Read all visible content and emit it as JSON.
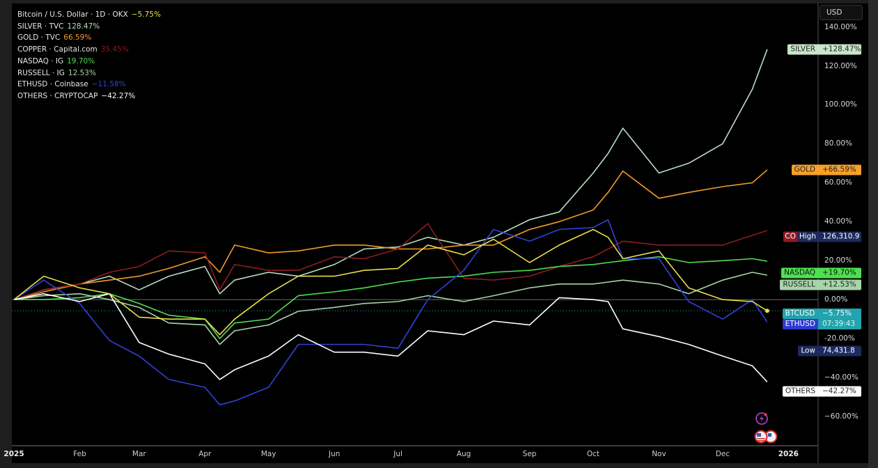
{
  "legend": [
    {
      "label": "Bitcoin / U.S. Dollar · 1D · OKX",
      "value": "−5.75%",
      "color": "#e8e04a"
    },
    {
      "label": "SILVER · TVC",
      "value": "128.47%",
      "color": "#b9dfc0"
    },
    {
      "label": "GOLD · TVC",
      "value": "66.59%",
      "color": "#f39a2a"
    },
    {
      "label": "COPPER · Capital.com",
      "value": "35.45%",
      "color": "#8c1c22"
    },
    {
      "label": "NASDAQ · IG",
      "value": "19.70%",
      "color": "#4fe04f"
    },
    {
      "label": "RUSSELL · IG",
      "value": "12.53%",
      "color": "#a8d5a8"
    },
    {
      "label": "ETHUSD · Coinbase",
      "value": "−11.58%",
      "color": "#3340d8"
    },
    {
      "label": "OTHERS · CRYPTOCAP",
      "value": "−42.27%",
      "color": "#ffffff"
    }
  ],
  "currency_button": "USD",
  "tags": {
    "silver": {
      "name": "SILVER",
      "value": "+128.47%"
    },
    "gold": {
      "name": "GOLD",
      "value": "+66.59%"
    },
    "copper_high": {
      "name": "CO",
      "label": "High",
      "value": "126,310.9"
    },
    "nasdaq": {
      "name": "NASDAQ",
      "value": "+19.70%"
    },
    "russell": {
      "name": "RUSSELL",
      "value": "+12.53%"
    },
    "btc": {
      "name": "BTCUSD",
      "value": "−5.75%",
      "countdown": "07:39:43"
    },
    "eth": {
      "name": "ETHUSD"
    },
    "low": {
      "label": "Low",
      "value": "74,431.8"
    },
    "others": {
      "name": "OTHERS",
      "value": "−42.27%"
    }
  },
  "colors": {
    "background": "#000000",
    "btc_tag": "#22a3ad",
    "hl_tag": "#1c2a5e"
  },
  "chart_data": {
    "type": "line",
    "title": "Bitcoin / U.S. Dollar · 1D · OKX",
    "xlim": [
      "2024-12-31",
      "2026-01-15"
    ],
    "ylim": [
      -75,
      152
    ],
    "y_ticks": [
      140,
      120,
      100,
      80,
      60,
      40,
      20,
      0,
      -20,
      -40,
      -60
    ],
    "y_tick_labels": [
      "140.00%",
      "120.00%",
      "100.00%",
      "80.00%",
      "60.00%",
      "40.00%",
      "20.00%",
      "0.00%",
      "-20.00%",
      "−40.00%",
      "−60.00%"
    ],
    "x_ticks": [
      {
        "date": "2025-01-01",
        "label": "2025",
        "bold": true
      },
      {
        "date": "2025-02-01",
        "label": "Feb"
      },
      {
        "date": "2025-03-01",
        "label": "Mar"
      },
      {
        "date": "2025-04-01",
        "label": "Apr"
      },
      {
        "date": "2025-05-01",
        "label": "May"
      },
      {
        "date": "2025-06-01",
        "label": "Jun"
      },
      {
        "date": "2025-07-01",
        "label": "Jul"
      },
      {
        "date": "2025-08-01",
        "label": "Aug"
      },
      {
        "date": "2025-09-01",
        "label": "Sep"
      },
      {
        "date": "2025-10-01",
        "label": "Oct"
      },
      {
        "date": "2025-11-01",
        "label": "Nov"
      },
      {
        "date": "2025-12-01",
        "label": "Dec"
      },
      {
        "date": "2026-01-01",
        "label": "2026",
        "bold": true
      }
    ],
    "x": [
      "2025-01-01",
      "2025-01-15",
      "2025-02-01",
      "2025-02-15",
      "2025-03-01",
      "2025-03-15",
      "2025-04-01",
      "2025-04-08",
      "2025-04-15",
      "2025-05-01",
      "2025-05-15",
      "2025-06-01",
      "2025-06-15",
      "2025-07-01",
      "2025-07-15",
      "2025-08-01",
      "2025-08-15",
      "2025-09-01",
      "2025-09-15",
      "2025-10-01",
      "2025-10-08",
      "2025-10-15",
      "2025-11-01",
      "2025-11-15",
      "2025-12-01",
      "2025-12-15",
      "2025-12-22"
    ],
    "series": [
      {
        "name": "SILVER",
        "color": "#b9dfc0",
        "values": [
          0,
          5,
          8,
          12,
          5,
          12,
          17,
          3,
          10,
          14,
          12,
          18,
          26,
          27,
          32,
          28,
          32,
          41,
          45,
          65,
          75,
          88,
          65,
          70,
          80,
          108,
          128.47
        ]
      },
      {
        "name": "GOLD",
        "color": "#f39a2a",
        "values": [
          0,
          4,
          8,
          10,
          12,
          16,
          22,
          14,
          28,
          24,
          25,
          28,
          28,
          26,
          26,
          28,
          28,
          36,
          40,
          46,
          55,
          66,
          52,
          55,
          58,
          60,
          66.59
        ]
      },
      {
        "name": "COPPER",
        "color": "#8c1c22",
        "values": [
          0,
          5,
          8,
          14,
          17,
          25,
          24,
          5,
          18,
          15,
          15,
          22,
          21,
          26,
          39,
          11,
          10,
          12,
          17,
          22,
          26,
          30,
          28,
          28,
          28,
          33,
          35.45
        ]
      },
      {
        "name": "NASDAQ",
        "color": "#4fe04f",
        "values": [
          0,
          0,
          1,
          3,
          -2,
          -8,
          -10,
          -20,
          -12,
          -10,
          2,
          4,
          6,
          9,
          11,
          12,
          14,
          15,
          17,
          18,
          19,
          20,
          22,
          19,
          20,
          21,
          19.7
        ]
      },
      {
        "name": "RUSSELL",
        "color": "#a8d5a8",
        "values": [
          0,
          2,
          3,
          0,
          -4,
          -12,
          -13,
          -23,
          -16,
          -13,
          -6,
          -4,
          -2,
          -1,
          2,
          -1,
          2,
          6,
          8,
          8,
          9,
          10,
          8,
          3,
          10,
          14,
          12.53
        ]
      },
      {
        "name": "ETHUSD",
        "color": "#3340d8",
        "values": [
          0,
          10,
          -2,
          -21,
          -29,
          -41,
          -45,
          -54,
          -52,
          -45,
          -23,
          -23,
          -23,
          -25,
          0,
          15,
          36,
          30,
          36,
          37,
          41,
          21,
          21,
          -1,
          -10,
          0,
          -11.58
        ]
      },
      {
        "name": "OTHERS",
        "color": "#ffffff",
        "values": [
          0,
          3,
          -1,
          3,
          -22,
          -28,
          -33,
          -41,
          -36,
          -29,
          -18,
          -27,
          -27,
          -29,
          -16,
          -18,
          -11,
          -13,
          1,
          0,
          -1,
          -15,
          -19,
          -23,
          -29,
          -34,
          -42.27
        ]
      },
      {
        "name": "BTCUSD",
        "color": "#e8e04a",
        "values": [
          0,
          12,
          6,
          3,
          -9,
          -10,
          -10,
          -18,
          -10,
          3,
          12,
          12,
          15,
          16,
          28,
          23,
          31,
          19,
          28,
          36,
          32,
          21,
          25,
          6,
          0,
          -1,
          -5.75
        ]
      }
    ]
  }
}
